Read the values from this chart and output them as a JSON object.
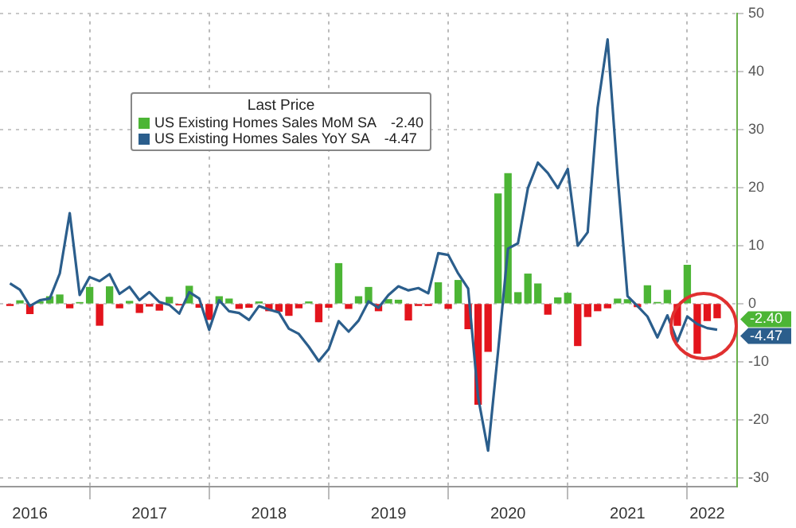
{
  "chart_data": {
    "type": "bar",
    "legend_title": "Last Price",
    "legend": "top left",
    "grid": true,
    "marker": "none",
    "x": [
      "2016-05",
      "2016-06",
      "2016-07",
      "2016-08",
      "2016-09",
      "2016-10",
      "2016-11",
      "2016-12",
      "2017-01",
      "2017-02",
      "2017-03",
      "2017-04",
      "2017-05",
      "2017-06",
      "2017-07",
      "2017-08",
      "2017-09",
      "2017-10",
      "2017-11",
      "2017-12",
      "2018-01",
      "2018-02",
      "2018-03",
      "2018-04",
      "2018-05",
      "2018-06",
      "2018-07",
      "2018-08",
      "2018-09",
      "2018-10",
      "2018-11",
      "2018-12",
      "2019-01",
      "2019-02",
      "2019-03",
      "2019-04",
      "2019-05",
      "2019-06",
      "2019-07",
      "2019-08",
      "2019-09",
      "2019-10",
      "2019-11",
      "2019-12",
      "2020-01",
      "2020-02",
      "2020-03",
      "2020-04",
      "2020-05",
      "2020-06",
      "2020-07",
      "2020-08",
      "2020-09",
      "2020-10",
      "2020-11",
      "2020-12",
      "2021-01",
      "2021-02",
      "2021-03",
      "2021-04",
      "2021-05",
      "2021-06",
      "2021-07",
      "2021-08",
      "2021-09",
      "2021-10",
      "2021-11",
      "2021-12",
      "2022-01",
      "2022-02",
      "2022-03",
      "2022-04"
    ],
    "series": [
      {
        "name": "US Existing Homes Sales MoM SA",
        "color": "#4cb535",
        "values": [
          -0.3,
          0.5,
          -1.7,
          0.3,
          1.2,
          1.5,
          -0.7,
          0.2,
          2.8,
          -3.7,
          2.9,
          -0.7,
          0.4,
          -1.5,
          -0.4,
          -1.1,
          1.1,
          -0.2,
          3.0,
          -0.6,
          -2.7,
          1.2,
          0.8,
          -0.8,
          -0.6,
          0.3,
          -1.2,
          -1.3,
          -2.0,
          -0.7,
          0.3,
          -3.1,
          -0.6,
          6.9,
          -0.8,
          1.2,
          2.8,
          -1.2,
          0.7,
          0.6,
          -2.8,
          -0.3,
          -0.3,
          3.6,
          -0.8,
          4.0,
          -4.3,
          -17.3,
          -8.2,
          18.9,
          22.4,
          1.9,
          5.1,
          3.4,
          -1.8,
          1.0,
          1.8,
          -7.2,
          -2.2,
          -1.2,
          -0.7,
          0.8,
          0.7,
          -0.5,
          3.1,
          0.2,
          2.3,
          -3.7,
          6.6,
          -8.5,
          -2.9,
          -2.4
        ],
        "colors": [
          "#e3141c",
          "#4cb535",
          "#e3141c",
          "#4cb535",
          "#4cb535",
          "#4cb535",
          "#e3141c",
          "#4cb535",
          "#4cb535",
          "#e3141c",
          "#4cb535",
          "#e3141c",
          "#4cb535",
          "#e3141c",
          "#e3141c",
          "#e3141c",
          "#4cb535",
          "#e3141c",
          "#4cb535",
          "#e3141c",
          "#e3141c",
          "#4cb535",
          "#4cb535",
          "#e3141c",
          "#e3141c",
          "#4cb535",
          "#e3141c",
          "#e3141c",
          "#e3141c",
          "#e3141c",
          "#4cb535",
          "#e3141c",
          "#e3141c",
          "#4cb535",
          "#e3141c",
          "#4cb535",
          "#4cb535",
          "#e3141c",
          "#4cb535",
          "#4cb535",
          "#e3141c",
          "#e3141c",
          "#e3141c",
          "#4cb535",
          "#e3141c",
          "#4cb535",
          "#e3141c",
          "#e3141c",
          "#e3141c",
          "#4cb535",
          "#4cb535",
          "#4cb535",
          "#4cb535",
          "#4cb535",
          "#e3141c",
          "#4cb535",
          "#4cb535",
          "#e3141c",
          "#e3141c",
          "#e3141c",
          "#e3141c",
          "#4cb535",
          "#4cb535",
          "#e3141c",
          "#4cb535",
          "#4cb535",
          "#4cb535",
          "#e3141c",
          "#4cb535",
          "#e3141c",
          "#e3141c",
          "#e3141c"
        ]
      },
      {
        "name": "US Existing Homes Sales YoY SA",
        "type": "line",
        "color": "#2b5e8c",
        "values": [
          3.5,
          2.4,
          -0.4,
          0.6,
          0.9,
          5.2,
          15.6,
          1.5,
          4.6,
          3.9,
          5.1,
          1.7,
          2.9,
          0.6,
          2.0,
          0.3,
          -0.2,
          -1.7,
          2.0,
          0.9,
          -4.5,
          0.6,
          -1.3,
          -1.6,
          -2.8,
          -0.4,
          -1.0,
          -1.5,
          -4.3,
          -5.2,
          -7.4,
          -9.9,
          -7.8,
          -3.0,
          -4.8,
          -2.9,
          0.4,
          -0.7,
          1.5,
          3.0,
          2.3,
          2.7,
          1.8,
          8.7,
          8.4,
          5.2,
          2.6,
          -16.1,
          -25.3,
          -8.3,
          9.5,
          10.4,
          19.9,
          24.3,
          22.5,
          19.9,
          23.2,
          10.0,
          12.3,
          33.8,
          45.5,
          22.2,
          1.3,
          -0.4,
          -2.2,
          -5.8,
          -2.0,
          -6.5,
          -2.2,
          -3.5,
          -4.2,
          -4.47
        ]
      }
    ],
    "annotations": [
      "-2.40",
      "-4.47"
    ],
    "xlim": [
      "2016-04",
      "2022-06"
    ],
    "xticks": [
      {
        "value": "2016-07",
        "label": "2016"
      },
      {
        "value": "2017-01",
        "label": null
      },
      {
        "value": "2017-07",
        "label": "2017"
      },
      {
        "value": "2018-01",
        "label": null
      },
      {
        "value": "2018-07",
        "label": "2018"
      },
      {
        "value": "2019-01",
        "label": null
      },
      {
        "value": "2019-07",
        "label": "2019"
      },
      {
        "value": "2020-01",
        "label": null
      },
      {
        "value": "2020-07",
        "label": "2020"
      },
      {
        "value": "2021-01",
        "label": null
      },
      {
        "value": "2021-07",
        "label": "2021"
      },
      {
        "value": "2022-01",
        "label": null
      },
      {
        "value": "2022-03",
        "label": "2022"
      }
    ],
    "ylim": [
      -31.5,
      50
    ],
    "yticks": [
      -30,
      -20,
      -10,
      0,
      10,
      20,
      30,
      40,
      50
    ]
  }
}
